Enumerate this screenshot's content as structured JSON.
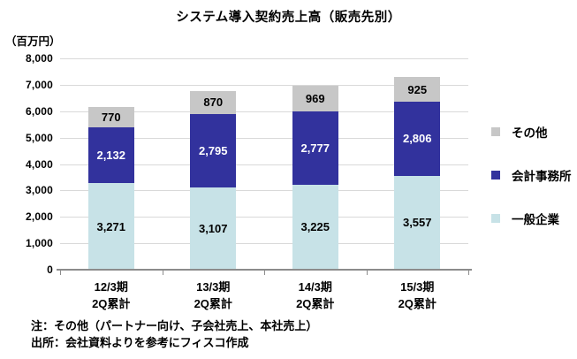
{
  "title": "システム導入契約売上高（販売先別）",
  "y_unit_label": "（百万円）",
  "notes": [
    "注：その他（パートナー向け、子会社売上、本社売上）",
    "出所：会社資料よりを参考にフィスコ作成"
  ],
  "legend": [
    {
      "label": "その他",
      "color": "#c7c7c7"
    },
    {
      "label": "会計事務所",
      "color": "#32329d"
    },
    {
      "label": "一般企業",
      "color": "#c7e2e7"
    }
  ],
  "colors": {
    "gridline": "#d9d9d9",
    "axis": "#8c8c8c",
    "background": "#ffffff"
  },
  "chart_data": {
    "type": "bar",
    "stacked": true,
    "title": "システム導入契約売上高（販売先別）",
    "ylabel": "（百万円）",
    "xlabel": "",
    "ylim": [
      0,
      8000
    ],
    "ytick_step": 1000,
    "grid": true,
    "legend_position": "right",
    "categories": [
      {
        "line1": "12/3期",
        "line2": "2Q累計"
      },
      {
        "line1": "13/3期",
        "line2": "2Q累計"
      },
      {
        "line1": "14/3期",
        "line2": "2Q累計"
      },
      {
        "line1": "15/3期",
        "line2": "2Q累計"
      }
    ],
    "series": [
      {
        "name": "一般企業",
        "color": "#c7e2e7",
        "value_color": "#000000",
        "value_bold": false,
        "values": [
          3271,
          3107,
          3225,
          3557
        ]
      },
      {
        "name": "会計事務所",
        "color": "#32329d",
        "value_color": "#ffffff",
        "value_bold": true,
        "values": [
          2132,
          2795,
          2777,
          2806
        ]
      },
      {
        "name": "その他",
        "color": "#c7c7c7",
        "value_color": "#000000",
        "value_bold": false,
        "values": [
          770,
          870,
          969,
          925
        ]
      }
    ],
    "totals": [
      6173,
      6772,
      6971,
      7288
    ]
  }
}
